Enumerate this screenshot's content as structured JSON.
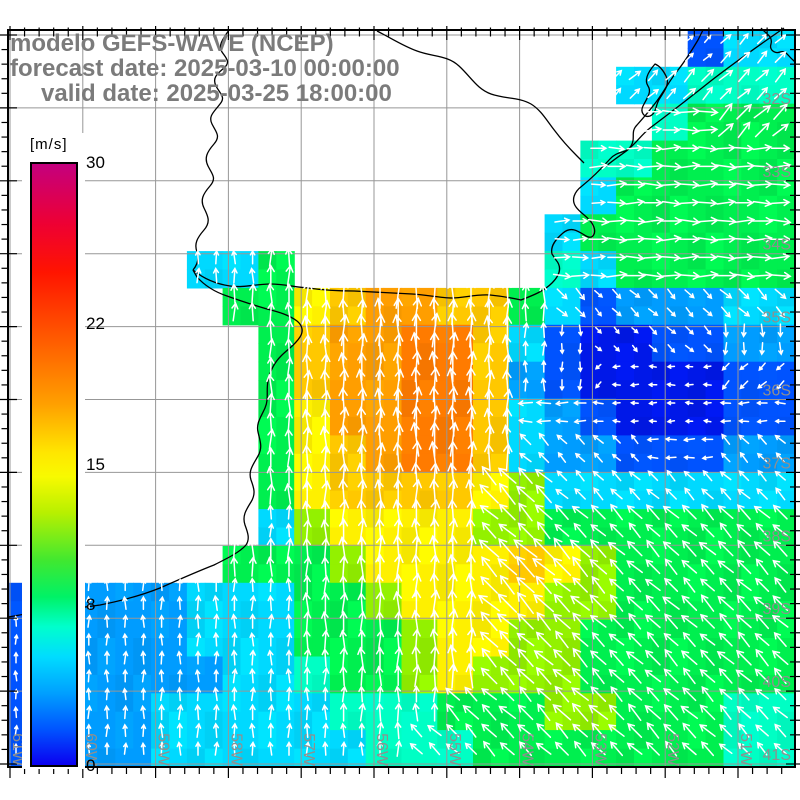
{
  "header": {
    "line1": "modelo GEFS-WAVE (NCEP)",
    "line2": "forecast date: 2025-03-10 00:00:00",
    "line3": "valid date: 2025-03-25 18:00:00"
  },
  "colorbar": {
    "unit_label": "[m/s]",
    "range": [
      0,
      30
    ],
    "tick_values": [
      "30",
      "22",
      "15",
      "8",
      "0"
    ],
    "gradient": [
      [
        "#c4007e",
        0
      ],
      [
        "#ee0033",
        10
      ],
      [
        "#ff1400",
        18
      ],
      [
        "#ff6000",
        30
      ],
      [
        "#ffa000",
        40
      ],
      [
        "#ffe600",
        48
      ],
      [
        "#f8fa00",
        52
      ],
      [
        "#b8f000",
        58
      ],
      [
        "#40e830",
        66
      ],
      [
        "#00f266",
        72
      ],
      [
        "#00ffcc",
        77
      ],
      [
        "#00dcff",
        82
      ],
      [
        "#00a0ff",
        88
      ],
      [
        "#0055ff",
        94
      ],
      [
        "#0b00f0",
        100
      ]
    ]
  },
  "axes": {
    "lat_labels": [
      "32S",
      "33S",
      "34S",
      "35S",
      "36S",
      "37S",
      "38S",
      "39S",
      "40S",
      "41S"
    ],
    "lon_labels": [
      "61W",
      "60W",
      "59W",
      "58W",
      "57W",
      "56W",
      "55W",
      "54W",
      "53W",
      "52W",
      "51W"
    ],
    "label_color": "#8f8f8f",
    "gridline_color": "#979797"
  },
  "chart_data": {
    "type": "heatmap",
    "title": "modelo GEFS-WAVE (NCEP)",
    "field": "forecast wind/wave speed with direction vectors",
    "unit": "m/s",
    "colorbar_ticks": [
      30,
      22,
      15,
      8,
      0
    ],
    "lat_axis": [
      "32S",
      "33S",
      "34S",
      "35S",
      "36S",
      "37S",
      "38S",
      "39S",
      "40S",
      "41S"
    ],
    "lon_axis": [
      "61W",
      "60W",
      "59W",
      "58W",
      "57W",
      "56W",
      "55W",
      "54W",
      "53W",
      "52W",
      "51W"
    ],
    "palette": {
      "B": {
        "color": "#0018e8",
        "speed": 3
      },
      "b": {
        "color": "#0053ff",
        "speed": 5
      },
      "u": {
        "color": "#009cff",
        "speed": 6.5
      },
      "c": {
        "color": "#00d9ff",
        "speed": 8
      },
      "t": {
        "color": "#00ffc4",
        "speed": 10
      },
      "g": {
        "color": "#00ef4f",
        "speed": 12
      },
      "l": {
        "color": "#93f100",
        "speed": 14
      },
      "y": {
        "color": "#fef000",
        "speed": 16
      },
      "o": {
        "color": "#ffc800",
        "speed": 18
      },
      "O": {
        "color": "#ff9e00",
        "speed": 20
      },
      "R": {
        "color": "#ff7b00",
        "speed": 22
      }
    },
    "speed_grid_rows": [
      "...................bcc",
      ".................ccttt",
      "..................tggg",
      "................ttgggg",
      "................cggggg",
      "...............cgggggg",
      ".....ccg.......tcggggg",
      "......ggyoOOoogcbuuucc",
      ".......goOORRocbBBbbuu",
      ".......goOORRoubBBBBbb",
      ".......gyOORRocubBBBbb",
      ".......gyoORRocuubbbuu",
      ".......gyooooylccccccc",
      ".......clyyyyllggggggg",
      "......ggglyyyyoylggggg",
      "buuuucccgglyyyyllggggg",
      "bbuuucccggglyyllgggggg",
      "bbuuuucctgglylllgggggg",
      "bbuuccccctttgggllgggtt",
      "bbuucccccctttgggggggtt"
    ],
    "direction_grid_rows": [
      "...................111",
      ".................11111",
      "..................2211",
      "................222222",
      "................222222",
      "...............2222222",
      ".....000.......2222222",
      "......0000000003333333",
      ".......000000004333344",
      ".......000000004566655",
      ".......000000066666666",
      ".......000000077776677",
      ".......000000777777777",
      ".......000000777777777",
      ".....00000000777777777",
      ".000000000000777777777",
      "0000000000000777777777",
      "0000000000000777777777",
      "0000000000007777777777",
      "0000000000077777777777"
    ],
    "direction_key": {
      "0": "N",
      "1": "NE",
      "2": "E",
      "3": "SE",
      "4": "S",
      "5": "SW",
      "6": "W",
      "7": "NW",
      ".": "land/none"
    },
    "coastline_paths": [
      "M229,30 C222,40 218,46 222,52 C226,58 231,62 224,68 C217,74 212,78 216,86 C220,94 226,97 220,104 C214,112 208,116 212,124 C216,132 221,136 214,144 C207,152 204,158 208,166 C212,174 217,178 210,186 C203,194 200,200 204,208 C208,216 211,222 204,230 C197,238 194,244 197,252 C199,258 198,264 193,270",
      "M193,270 C204,279 216,284 230,286 C244,288 256,284 270,284 C284,284 294,287 308,288 C322,290 338,291 354,291 C372,292 392,293 412,294 C428,295 440,298 452,298 C464,298 476,294 490,295 C500,296 512,298 521,300 C534,295 544,291 552,283 C560,275 562,267 556,260 L552,254 C550,246 556,239 563,233 C571,226 578,231 586,236 C593,240 597,233 593,225 C589,217 581,214 576,207 C571,200 574,192 582,186 C592,178 601,169 610,159 C618,150 626,154 631,146 C636,138 630,132 637,125 C645,116 652,108 659,98 C666,88 670,80 678,70 C686,60 692,50 698,40 L703,30",
      "M784,28 C758,46 734,63 712,80 C692,96 670,113 650,128 C640,136 634,146 625,152 C618,157 612,161 605,167",
      "M655,64 C648,72 644,80 648,86 C652,92 647,98 643,106 C640,112 644,118 650,116 C657,113 655,105 660,98 C665,90 670,84 666,76 C663,70 660,66 655,64 Z",
      "M761,28 C766,34 773,36 771,44 C769,50 775,54 780,52 C786,50 788,56 793,60 L795,62",
      "M377,31 C391,38 403,46 417,51 C433,57 447,55 459,66 C471,77 477,89 491,94 C505,99 519,97 531,104 C541,110 547,121 555,131 C561,139 568,147 577,156 L584,163",
      "M193,270 L197,277 C205,286 215,292 227,296 C241,301 253,305 267,309 C279,312 289,315 297,321 C302,325 304,331 300,337 C295,345 288,349 281,356 C274,363 270,371 268,381 C266,391 269,399 265,408 C261,417 256,423 258,432 C260,441 263,447 258,456 C253,465 248,471 251,480 C254,488 256,494 251,502 C246,510 242,516 245,525 C248,533 250,539 246,545 C240,552 228,558 214,565 C196,572 178,580 160,588 C140,596 120,601 100,605 C80,608 60,610 40,612 C30,613 20,615 8,617"
    ]
  }
}
